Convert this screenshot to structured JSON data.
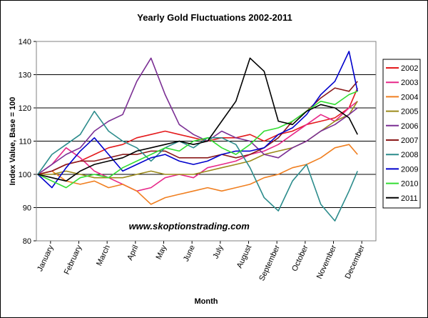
{
  "chart_data": {
    "type": "line",
    "title": "Yearly Gold Fluctuations 2002-2011",
    "xlabel": "Month",
    "ylabel": "Index Value, Base = 100",
    "ylim": [
      80,
      140
    ],
    "yticks": [
      80,
      90,
      100,
      110,
      120,
      130,
      140
    ],
    "grid": "horizontal",
    "legend_position": "right",
    "x_categories": [
      "January",
      "February",
      "March",
      "April",
      "May",
      "June",
      "July",
      "August",
      "September",
      "October",
      "November",
      "December"
    ],
    "annotation": "www.skoptionstrading.com",
    "plot_background": "#ffffff",
    "series": [
      {
        "name": "2002",
        "color": "#e41a1c",
        "x": [
          0,
          0.5,
          1,
          1.5,
          2,
          2.5,
          3,
          3.5,
          4,
          4.5,
          5,
          5.5,
          6,
          6.5,
          7,
          7.5,
          8,
          8.5,
          9,
          9.5,
          10,
          10.5,
          11,
          11.3
        ],
        "values": [
          100,
          101,
          103,
          104,
          106,
          108,
          109,
          111,
          112,
          113,
          112,
          111,
          110,
          111,
          111,
          112,
          110,
          112,
          113,
          115,
          116,
          117,
          120,
          126
        ]
      },
      {
        "name": "2003",
        "color": "#e7298a",
        "x": [
          0,
          0.5,
          1,
          1.5,
          2,
          2.5,
          3,
          3.5,
          4,
          4.5,
          5,
          5.5,
          6,
          6.5,
          7,
          7.5,
          8,
          8.5,
          9,
          9.5,
          10,
          10.5,
          11,
          11.3
        ],
        "values": [
          100,
          103,
          108,
          105,
          101,
          99,
          97,
          95,
          96,
          99,
          100,
          99,
          102,
          103,
          104,
          106,
          107,
          109,
          112,
          115,
          118,
          116,
          120,
          122
        ]
      },
      {
        "name": "2004",
        "color": "#f07f20",
        "x": [
          0,
          0.5,
          1,
          1.5,
          2,
          2.5,
          3,
          3.5,
          4,
          4.5,
          5,
          5.5,
          6,
          6.5,
          7,
          7.5,
          8,
          8.5,
          9,
          9.5,
          10,
          10.5,
          11,
          11.3
        ],
        "values": [
          100,
          101,
          98,
          97,
          98,
          96,
          97,
          95,
          91,
          93,
          94,
          95,
          96,
          95,
          96,
          97,
          99,
          100,
          102,
          103,
          105,
          108,
          109,
          106
        ]
      },
      {
        "name": "2005",
        "color": "#9b8a1a",
        "x": [
          0,
          0.5,
          1,
          1.5,
          2,
          2.5,
          3,
          3.5,
          4,
          4.5,
          5,
          5.5,
          6,
          6.5,
          7,
          7.5,
          8,
          8.5,
          9,
          9.5,
          10,
          10.5,
          11,
          11.3
        ],
        "values": [
          100,
          100,
          101,
          100,
          99,
          99,
          99,
          100,
          101,
          100,
          100,
          100,
          101,
          102,
          103,
          104,
          106,
          107,
          108,
          110,
          113,
          116,
          118,
          122
        ]
      },
      {
        "name": "2006",
        "color": "#7b2f94",
        "x": [
          0,
          0.5,
          1,
          1.5,
          2,
          2.5,
          3,
          3.5,
          4,
          4.5,
          5,
          5.5,
          6,
          6.5,
          7,
          7.5,
          8,
          8.5,
          9,
          9.5,
          10,
          10.5,
          11,
          11.3
        ],
        "values": [
          100,
          103,
          106,
          108,
          113,
          116,
          118,
          128,
          135,
          124,
          115,
          112,
          110,
          113,
          111,
          110,
          106,
          105,
          108,
          110,
          113,
          115,
          118,
          120
        ]
      },
      {
        "name": "2007",
        "color": "#8b1a1a",
        "x": [
          0,
          0.5,
          1,
          1.5,
          2,
          2.5,
          3,
          3.5,
          4,
          4.5,
          5,
          5.5,
          6,
          6.5,
          7,
          7.5,
          8,
          8.5,
          9,
          9.5,
          10,
          10.5,
          11,
          11.3
        ],
        "values": [
          100,
          101,
          103,
          104,
          104,
          105,
          106,
          106,
          107,
          107,
          105,
          105,
          105,
          106,
          105,
          106,
          108,
          111,
          116,
          119,
          123,
          126,
          125,
          128
        ]
      },
      {
        "name": "2008",
        "color": "#2c8c8c",
        "x": [
          0,
          0.5,
          1,
          1.5,
          2,
          2.5,
          3,
          3.5,
          4,
          4.5,
          5,
          5.5,
          6,
          6.5,
          7,
          7.5,
          8,
          8.5,
          9,
          9.5,
          10,
          10.5,
          11,
          11.3
        ],
        "values": [
          100,
          106,
          109,
          112,
          119,
          113,
          110,
          108,
          104,
          108,
          110,
          108,
          111,
          111,
          109,
          102,
          93,
          89,
          98,
          103,
          91,
          86,
          95,
          101
        ]
      },
      {
        "name": "2009",
        "color": "#0000cc",
        "x": [
          0,
          0.5,
          1,
          1.5,
          2,
          2.5,
          3,
          3.5,
          4,
          4.5,
          5,
          5.5,
          6,
          6.5,
          7,
          7.5,
          8,
          8.5,
          9,
          9.5,
          10,
          10.5,
          11,
          11.3
        ],
        "values": [
          100,
          96,
          102,
          107,
          111,
          106,
          101,
          103,
          105,
          106,
          104,
          103,
          104,
          106,
          107,
          107,
          108,
          112,
          114,
          118,
          124,
          128,
          137,
          125
        ]
      },
      {
        "name": "2010",
        "color": "#33dd33",
        "x": [
          0,
          0.5,
          1,
          1.5,
          2,
          2.5,
          3,
          3.5,
          4,
          4.5,
          5,
          5.5,
          6,
          6.5,
          7,
          7.5,
          8,
          8.5,
          9,
          9.5,
          10,
          10.5,
          11,
          11.3
        ],
        "values": [
          100,
          98,
          96,
          99,
          100,
          99,
          102,
          104,
          106,
          108,
          107,
          110,
          111,
          108,
          106,
          109,
          113,
          114,
          116,
          119,
          122,
          121,
          124,
          125
        ]
      },
      {
        "name": "2011",
        "color": "#000000",
        "x": [
          0,
          0.5,
          1,
          1.5,
          2,
          2.5,
          3,
          3.5,
          4,
          4.5,
          5,
          5.5,
          6,
          6.5,
          7,
          7.5,
          8,
          8.5,
          9,
          9.5,
          10,
          10.5,
          11,
          11.3
        ],
        "values": [
          100,
          99,
          98,
          101,
          103,
          104,
          105,
          107,
          108,
          109,
          110,
          109,
          110,
          116,
          122,
          135,
          131,
          116,
          115,
          119,
          121,
          120,
          117,
          112
        ]
      }
    ]
  }
}
